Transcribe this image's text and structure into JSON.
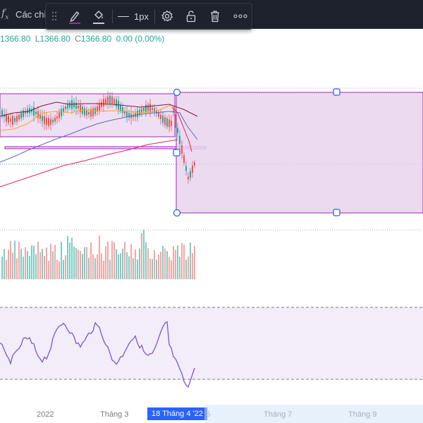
{
  "topbar": {
    "indicators_label": "Các chỉ"
  },
  "toolbar": {
    "line_width_label": "1px"
  },
  "ohlc": {
    "high": "1366.80",
    "low_prefix": "L",
    "low": "1366.80",
    "close_prefix": "C",
    "close": "1366.80",
    "change": "0.00 (0.00%)"
  },
  "time_axis": {
    "labels": [
      "2022",
      "Tháng 3",
      "Tháng 7",
      "Tháng 9"
    ],
    "highlighted": "18 Tháng 4 '22",
    "partial": "5"
  },
  "colors": {
    "up": "#26a69a",
    "down": "#ef5350",
    "rectangle_fill": "#e9d4ef",
    "rectangle_border": "#9c27b0",
    "selection_handle": "#2962ff",
    "rsi_line": "#7e57c2"
  }
}
